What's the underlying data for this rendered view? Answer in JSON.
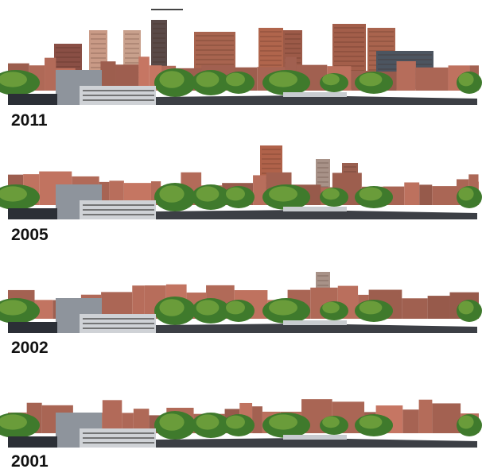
{
  "panels": [
    {
      "year": "2011"
    },
    {
      "year": "2005"
    },
    {
      "year": "2002"
    },
    {
      "year": "2001"
    }
  ]
}
